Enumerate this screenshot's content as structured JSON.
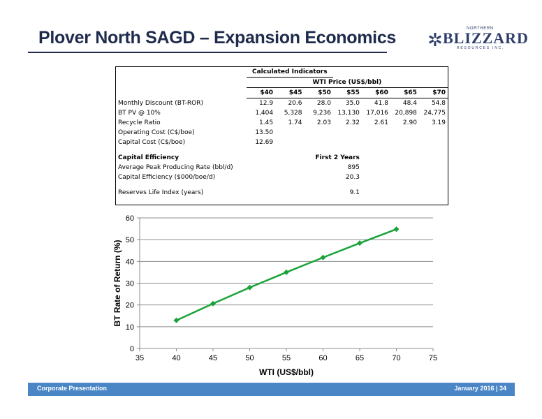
{
  "page": {
    "title": "Plover North SAGD – Expansion Economics",
    "logo": {
      "top": "NORTHERN",
      "main": "BLIZZARD",
      "bottom": "RESOURCES INC."
    },
    "footer": {
      "left": "Corporate Presentation",
      "right": "January 2016 | 34"
    }
  },
  "table": {
    "title": "Calculated Indicators",
    "wti_header": "WTI Price (US$/bbl)",
    "prices": [
      "$40",
      "$45",
      "$50",
      "$55",
      "$60",
      "$65",
      "$70"
    ],
    "rows": [
      {
        "label": "Monthly Discount (BT-ROR)",
        "values": [
          "12.9",
          "20.6",
          "28.0",
          "35.0",
          "41.8",
          "48.4",
          "54.8"
        ]
      },
      {
        "label": "BT PV @ 10%",
        "values": [
          "1,404",
          "5,328",
          "9,236",
          "13,130",
          "17,016",
          "20,898",
          "24,775"
        ]
      },
      {
        "label": "Recycle Ratio",
        "values": [
          "1.45",
          "1.74",
          "2.03",
          "2.32",
          "2.61",
          "2.90",
          "3.19"
        ]
      },
      {
        "label": "Operating Cost (C$/boe)",
        "values": [
          "13.50"
        ]
      },
      {
        "label": "Capital Cost (C$/boe)",
        "values": [
          "12.69"
        ]
      }
    ],
    "capital_efficiency": {
      "heading": "Capital Efficiency",
      "column": "First 2 Years",
      "rows": [
        {
          "label": "Average Peak Producing Rate (bbl/d)",
          "value": "895"
        },
        {
          "label": "Capital Efficiency ($000/boe/d)",
          "value": "20.3"
        }
      ]
    },
    "reserves": {
      "label": "Reserves Life Index (years)",
      "value": "9.1"
    }
  },
  "chart_data": {
    "type": "line",
    "title": "",
    "xlabel": "WTI (US$/bbl)",
    "ylabel": "BT Rate of Return (%)",
    "xlim": [
      35,
      75
    ],
    "ylim": [
      0,
      60
    ],
    "xticks": [
      35,
      40,
      45,
      50,
      55,
      60,
      65,
      70,
      75
    ],
    "yticks": [
      0,
      10,
      20,
      30,
      40,
      50,
      60
    ],
    "grid": true,
    "legend": "none",
    "series": [
      {
        "x": [
          40,
          45,
          50,
          55,
          60,
          65,
          70
        ],
        "y": [
          12.9,
          20.6,
          28.0,
          35.0,
          41.8,
          48.4,
          54.8
        ],
        "color": "#1aa33a",
        "marker": "diamond"
      }
    ],
    "gridColor": "#8c8c8c"
  }
}
